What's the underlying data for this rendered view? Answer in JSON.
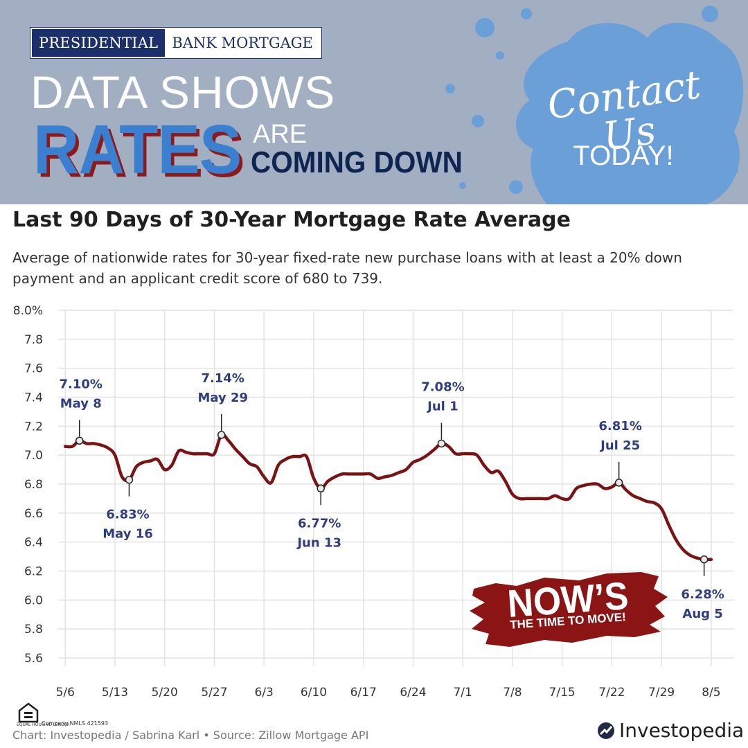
{
  "banner": {
    "logo_left": "PRESIDENTIAL",
    "logo_right": "BANK MORTGAGE",
    "headline_line1": "DATA SHOWS",
    "headline_rates": "RATES",
    "headline_are": "ARE",
    "headline_coming": "COMING DOWN",
    "contact_script": "Contact Us",
    "contact_today": "TODAY!",
    "colors": {
      "background": "#a2aec2",
      "splash": "#6a9fd8",
      "navy": "#1b2f6b",
      "rates_blue": "#3b7fd0",
      "rates_shadow": "#8b1a1a"
    }
  },
  "chart_data": {
    "type": "line",
    "title": "Last 90 Days of 30-Year Mortgage Rate Average",
    "subtitle": "Average of nationwide rates for 30-year fixed-rate new purchase loans with at least a 20% down payment and an applicant credit score of 680 to 739.",
    "xlabel": "",
    "ylabel": "",
    "ylim": [
      5.6,
      8.0
    ],
    "y_ticks": [
      "8.0%",
      "7.8",
      "7.6",
      "7.4",
      "7.2",
      "7.0",
      "6.8",
      "6.6",
      "6.4",
      "6.2",
      "6.0",
      "5.8",
      "5.6"
    ],
    "y_tick_values": [
      8.0,
      7.8,
      7.6,
      7.4,
      7.2,
      7.0,
      6.8,
      6.6,
      6.4,
      6.2,
      6.0,
      5.8,
      5.6
    ],
    "x_ticks": [
      "5/6",
      "5/13",
      "5/20",
      "5/27",
      "6/3",
      "6/10",
      "6/17",
      "6/24",
      "7/1",
      "7/8",
      "7/15",
      "7/22",
      "7/29",
      "8/5"
    ],
    "grid": true,
    "line_color": "#7a1414",
    "series": [
      {
        "x": [
          0,
          1,
          2,
          3,
          4,
          5,
          6,
          7,
          8,
          9,
          10,
          11,
          12,
          13,
          14,
          15,
          16,
          17,
          18,
          19,
          20,
          21,
          22,
          23,
          24,
          25,
          26,
          27,
          28,
          29,
          30,
          31,
          32,
          33,
          34,
          35,
          36,
          37,
          38,
          39,
          40,
          41,
          42,
          43,
          44,
          45,
          46,
          47,
          48,
          49,
          50,
          51,
          52,
          53,
          54,
          55,
          56,
          57,
          58,
          59,
          60,
          61,
          62,
          63,
          64,
          65,
          66,
          67,
          68,
          69,
          70,
          71,
          72,
          73,
          74,
          75,
          76,
          77,
          78,
          79,
          80,
          81,
          82,
          83,
          84,
          85,
          86,
          87,
          88,
          89,
          90,
          91
        ],
        "values": [
          7.06,
          7.06,
          7.1,
          7.08,
          7.08,
          7.07,
          7.05,
          7.0,
          6.85,
          6.83,
          6.92,
          6.95,
          6.96,
          6.97,
          6.9,
          6.93,
          7.03,
          7.02,
          7.01,
          7.01,
          7.01,
          7.01,
          7.14,
          7.1,
          7.04,
          6.99,
          6.94,
          6.92,
          6.85,
          6.81,
          6.93,
          6.97,
          6.99,
          6.99,
          6.99,
          6.84,
          6.77,
          6.82,
          6.85,
          6.87,
          6.87,
          6.87,
          6.87,
          6.87,
          6.84,
          6.85,
          6.86,
          6.88,
          6.9,
          6.95,
          6.97,
          7.0,
          7.04,
          7.08,
          7.06,
          7.01,
          7.01,
          7.01,
          7.0,
          6.93,
          6.88,
          6.89,
          6.82,
          6.73,
          6.7,
          6.7,
          6.7,
          6.7,
          6.7,
          6.72,
          6.7,
          6.7,
          6.77,
          6.79,
          6.8,
          6.8,
          6.77,
          6.78,
          6.81,
          6.76,
          6.72,
          6.7,
          6.68,
          6.67,
          6.63,
          6.52,
          6.42,
          6.35,
          6.31,
          6.29,
          6.28,
          6.28
        ]
      }
    ],
    "annotations": [
      {
        "value_label": "7.10%",
        "date_label": "May 8",
        "x": 2,
        "y": 7.1,
        "pos": "above"
      },
      {
        "value_label": "6.83%",
        "date_label": "May 16",
        "x": 9,
        "y": 6.83,
        "pos": "below"
      },
      {
        "value_label": "7.14%",
        "date_label": "May 29",
        "x": 22,
        "y": 7.14,
        "pos": "above"
      },
      {
        "value_label": "6.77%",
        "date_label": "Jun 13",
        "x": 36,
        "y": 6.77,
        "pos": "below"
      },
      {
        "value_label": "7.08%",
        "date_label": "Jul 1",
        "x": 53,
        "y": 7.08,
        "pos": "above"
      },
      {
        "value_label": "6.81%",
        "date_label": "Jul 25",
        "x": 78,
        "y": 6.81,
        "pos": "above"
      },
      {
        "value_label": "6.28%",
        "date_label": "Aug 5",
        "x": 90,
        "y": 6.28,
        "pos": "below"
      }
    ]
  },
  "promo": {
    "now": "NOW’S",
    "sub": "THE TIME TO MOVE!",
    "color": "#8b1414"
  },
  "footer": {
    "equal_housing": "EQUAL HOUSING LENDER",
    "nmls": "Company NMLS 421593",
    "credit": "Chart: Investopedia / Sabrina Karl • Source: Zillow Mortgage API",
    "brand": "Investopedia"
  }
}
